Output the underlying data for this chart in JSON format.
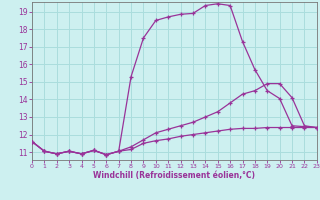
{
  "xlabel": "Windchill (Refroidissement éolien,°C)",
  "background_color": "#cdf0f0",
  "grid_color": "#aadddd",
  "line_color": "#993399",
  "spine_color": "#777777",
  "xmin": 0,
  "xmax": 23,
  "ymin": 10.55,
  "ymax": 19.55,
  "yticks": [
    11,
    12,
    13,
    14,
    15,
    16,
    17,
    18,
    19
  ],
  "xticks": [
    0,
    1,
    2,
    3,
    4,
    5,
    6,
    7,
    8,
    9,
    10,
    11,
    12,
    13,
    14,
    15,
    16,
    17,
    18,
    19,
    20,
    21,
    22,
    23
  ],
  "line1_x": [
    0,
    1,
    2,
    3,
    4,
    5,
    6,
    7,
    8,
    9,
    10,
    11,
    12,
    13,
    14,
    15,
    16,
    17,
    18,
    19,
    20,
    21,
    22,
    23
  ],
  "line1_y": [
    11.6,
    11.05,
    10.9,
    11.05,
    10.9,
    11.1,
    10.85,
    11.05,
    11.15,
    11.5,
    11.65,
    11.75,
    11.9,
    12.0,
    12.1,
    12.2,
    12.3,
    12.35,
    12.35,
    12.4,
    12.4,
    12.4,
    12.4,
    12.4
  ],
  "line2_x": [
    0,
    1,
    2,
    3,
    4,
    5,
    6,
    7,
    8,
    9,
    10,
    11,
    12,
    13,
    14,
    15,
    16,
    17,
    18,
    19,
    20,
    21,
    22,
    23
  ],
  "line2_y": [
    11.6,
    11.05,
    10.9,
    11.05,
    10.9,
    11.1,
    10.85,
    11.05,
    11.3,
    11.7,
    12.1,
    12.3,
    12.5,
    12.7,
    13.0,
    13.3,
    13.8,
    14.3,
    14.5,
    14.9,
    14.9,
    14.1,
    12.5,
    12.4
  ],
  "line3_x": [
    0,
    1,
    2,
    3,
    4,
    5,
    6,
    7,
    8,
    9,
    10,
    11,
    12,
    13,
    14,
    15,
    16,
    17,
    18,
    19,
    20,
    21,
    22,
    23
  ],
  "line3_y": [
    11.6,
    11.05,
    10.9,
    11.05,
    10.9,
    11.1,
    10.85,
    11.05,
    15.3,
    17.5,
    18.5,
    18.7,
    18.85,
    18.9,
    19.35,
    19.45,
    19.35,
    17.3,
    15.7,
    14.5,
    14.05,
    12.5,
    12.45,
    12.4
  ]
}
